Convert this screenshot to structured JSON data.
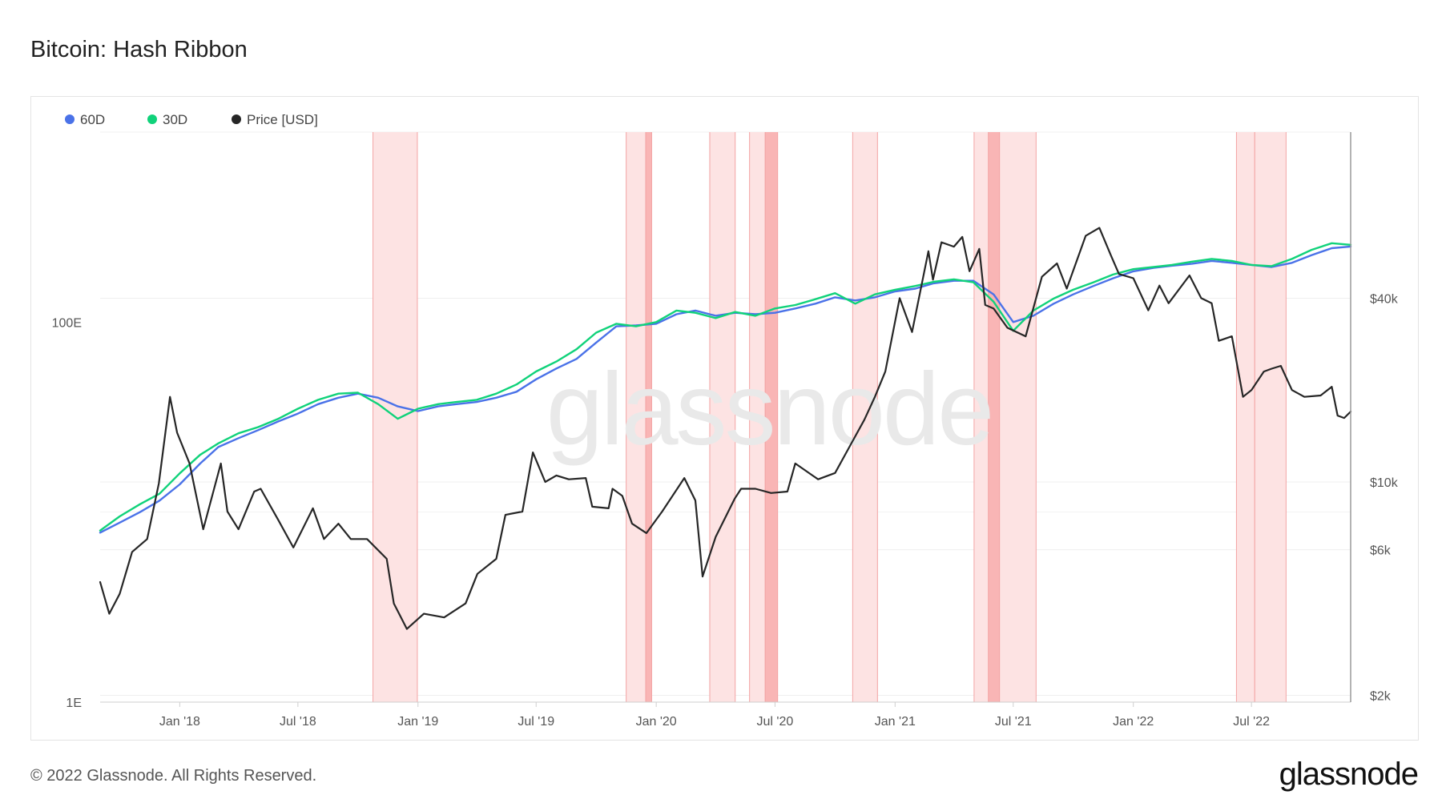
{
  "header": {
    "title": "Bitcoin: Hash Ribbon"
  },
  "footer": {
    "copyright": "© 2022 Glassnode. All Rights Reserved.",
    "logo": "glassnode"
  },
  "watermark": "glassnode",
  "colors": {
    "hr60": "#4a72e8",
    "hr30": "#10d27a",
    "price": "#262626",
    "capitulation_light": "#fde3e3",
    "capitulation_dark": "#f9b5b5",
    "watermark": "#e9e9e9"
  },
  "chart_data": {
    "type": "line",
    "legend": [
      {
        "label": "60D",
        "color": "#4a72e8"
      },
      {
        "label": "30D",
        "color": "#10d27a"
      },
      {
        "label": "Price [USD]",
        "color": "#262626"
      }
    ],
    "legend_position": "top-left",
    "x_ticks": [
      {
        "label": "Jan '18",
        "date": "2018-01-01"
      },
      {
        "label": "Jul '18",
        "date": "2018-07-01"
      },
      {
        "label": "Jan '19",
        "date": "2019-01-01"
      },
      {
        "label": "Jul '19",
        "date": "2019-07-01"
      },
      {
        "label": "Jan '20",
        "date": "2020-01-01"
      },
      {
        "label": "Jul '20",
        "date": "2020-07-01"
      },
      {
        "label": "Jan '21",
        "date": "2021-01-01"
      },
      {
        "label": "Jul '21",
        "date": "2021-07-01"
      },
      {
        "label": "Jan '22",
        "date": "2022-01-01"
      },
      {
        "label": "Jul '22",
        "date": "2022-07-01"
      }
    ],
    "x_range": [
      "2017-09-01",
      "2022-11-30"
    ],
    "y_left": {
      "scale": "log",
      "range": [
        "1E",
        "1000E"
      ],
      "ticks": [
        {
          "label": "1E",
          "value": 1
        },
        {
          "label": "100E",
          "value": 100
        }
      ]
    },
    "y_right": {
      "scale": "log",
      "range": [
        1900,
        140000
      ],
      "ticks": [
        {
          "label": "$2k",
          "value": 2000
        },
        {
          "label": "$6k",
          "value": 6000
        },
        {
          "label": "$10k",
          "value": 10000
        },
        {
          "label": "$40k",
          "value": 40000
        }
      ]
    },
    "capitulation_periods": [
      {
        "start": "2018-10-24",
        "end": "2018-12-31",
        "intensity": "light"
      },
      {
        "start": "2019-11-16",
        "end": "2019-12-16",
        "intensity": "light"
      },
      {
        "start": "2019-12-16",
        "end": "2019-12-25",
        "intensity": "dark"
      },
      {
        "start": "2020-03-23",
        "end": "2020-05-01",
        "intensity": "light"
      },
      {
        "start": "2020-05-23",
        "end": "2020-06-16",
        "intensity": "light"
      },
      {
        "start": "2020-06-16",
        "end": "2020-07-05",
        "intensity": "dark"
      },
      {
        "start": "2020-10-28",
        "end": "2020-12-05",
        "intensity": "light"
      },
      {
        "start": "2021-05-02",
        "end": "2021-05-24",
        "intensity": "light"
      },
      {
        "start": "2021-05-24",
        "end": "2021-06-10",
        "intensity": "dark"
      },
      {
        "start": "2021-06-10",
        "end": "2021-08-05",
        "intensity": "light"
      },
      {
        "start": "2022-06-08",
        "end": "2022-07-06",
        "intensity": "light"
      },
      {
        "start": "2022-07-06",
        "end": "2022-08-23",
        "intensity": "light"
      }
    ],
    "series": [
      {
        "name": "60D",
        "axis": "left",
        "x": [
          "2017-09-01",
          "2017-10-01",
          "2017-11-01",
          "2017-12-01",
          "2018-01-01",
          "2018-02-01",
          "2018-03-01",
          "2018-04-01",
          "2018-05-01",
          "2018-06-01",
          "2018-07-01",
          "2018-08-01",
          "2018-09-01",
          "2018-10-01",
          "2018-11-01",
          "2018-12-01",
          "2019-01-01",
          "2019-02-01",
          "2019-03-01",
          "2019-04-01",
          "2019-05-01",
          "2019-06-01",
          "2019-07-01",
          "2019-08-01",
          "2019-09-01",
          "2019-10-01",
          "2019-11-01",
          "2019-12-01",
          "2020-01-01",
          "2020-02-01",
          "2020-03-01",
          "2020-04-01",
          "2020-05-01",
          "2020-06-01",
          "2020-07-01",
          "2020-08-01",
          "2020-09-01",
          "2020-10-01",
          "2020-11-01",
          "2020-12-01",
          "2021-01-01",
          "2021-02-01",
          "2021-03-01",
          "2021-04-01",
          "2021-05-01",
          "2021-06-01",
          "2021-07-01",
          "2021-08-01",
          "2021-09-01",
          "2021-10-01",
          "2021-11-01",
          "2021-12-01",
          "2022-01-01",
          "2022-02-01",
          "2022-03-01",
          "2022-04-01",
          "2022-05-01",
          "2022-06-01",
          "2022-07-01",
          "2022-08-01",
          "2022-09-01",
          "2022-10-01",
          "2022-11-01",
          "2022-11-30"
        ],
        "values": [
          7.8,
          8.8,
          10.0,
          11.5,
          14.0,
          18.0,
          22.0,
          24.5,
          27.0,
          30.0,
          33.0,
          37.0,
          40.0,
          42.0,
          40.0,
          36.0,
          34.0,
          36.0,
          37.0,
          38.0,
          40.0,
          43.0,
          50.0,
          57.0,
          64.0,
          78.0,
          95.0,
          96.0,
          98.0,
          110.0,
          115.0,
          108.0,
          112.0,
          110.0,
          112.0,
          118.0,
          125.0,
          135.0,
          130.0,
          135.0,
          145.0,
          150.0,
          160.0,
          165.0,
          165.0,
          140.0,
          100.0,
          108.0,
          125.0,
          140.0,
          155.0,
          170.0,
          185.0,
          193.0,
          198.0,
          203.0,
          210.0,
          205.0,
          200.0,
          195.0,
          205.0,
          225.0,
          245.0,
          250.0
        ]
      },
      {
        "name": "30D",
        "axis": "left",
        "x": [
          "2017-09-01",
          "2017-10-01",
          "2017-11-01",
          "2017-12-01",
          "2018-01-01",
          "2018-02-01",
          "2018-03-01",
          "2018-04-01",
          "2018-05-01",
          "2018-06-01",
          "2018-07-01",
          "2018-08-01",
          "2018-09-01",
          "2018-10-01",
          "2018-11-01",
          "2018-12-01",
          "2019-01-01",
          "2019-02-01",
          "2019-03-01",
          "2019-04-01",
          "2019-05-01",
          "2019-06-01",
          "2019-07-01",
          "2019-08-01",
          "2019-09-01",
          "2019-10-01",
          "2019-11-01",
          "2019-12-01",
          "2020-01-01",
          "2020-02-01",
          "2020-03-01",
          "2020-04-01",
          "2020-05-01",
          "2020-06-01",
          "2020-07-01",
          "2020-08-01",
          "2020-09-01",
          "2020-10-01",
          "2020-11-01",
          "2020-12-01",
          "2021-01-01",
          "2021-02-01",
          "2021-03-01",
          "2021-04-01",
          "2021-05-01",
          "2021-06-01",
          "2021-07-01",
          "2021-08-01",
          "2021-09-01",
          "2021-10-01",
          "2021-11-01",
          "2021-12-01",
          "2022-01-01",
          "2022-02-01",
          "2022-03-01",
          "2022-04-01",
          "2022-05-01",
          "2022-06-01",
          "2022-07-01",
          "2022-08-01",
          "2022-09-01",
          "2022-10-01",
          "2022-11-01",
          "2022-11-30"
        ],
        "values": [
          8.0,
          9.5,
          11.0,
          12.5,
          16.0,
          20.0,
          23.0,
          26.0,
          28.0,
          31.0,
          35.0,
          39.0,
          42.0,
          42.5,
          37.0,
          31.0,
          35.0,
          37.0,
          38.0,
          39.0,
          42.0,
          47.0,
          55.0,
          62.0,
          72.0,
          88.0,
          98.0,
          95.0,
          100.0,
          115.0,
          112.0,
          105.0,
          113.0,
          108.0,
          118.0,
          123.0,
          132.0,
          142.0,
          125.0,
          140.0,
          148.0,
          155.0,
          163.0,
          168.0,
          162.0,
          128.0,
          90.0,
          115.0,
          133.0,
          148.0,
          162.0,
          178.0,
          190.0,
          195.0,
          200.0,
          208.0,
          215.0,
          210.0,
          200.0,
          197.0,
          215.0,
          240.0,
          260.0,
          255.0
        ]
      },
      {
        "name": "Price [USD]",
        "axis": "right",
        "x": [
          "2017-09-01",
          "2017-09-15",
          "2017-10-01",
          "2017-10-20",
          "2017-11-12",
          "2017-11-30",
          "2017-12-17",
          "2017-12-28",
          "2018-01-16",
          "2018-02-06",
          "2018-03-05",
          "2018-03-15",
          "2018-04-01",
          "2018-04-25",
          "2018-05-05",
          "2018-06-01",
          "2018-06-24",
          "2018-07-24",
          "2018-08-10",
          "2018-09-01",
          "2018-09-20",
          "2018-10-15",
          "2018-11-14",
          "2018-11-25",
          "2018-12-15",
          "2019-01-10",
          "2019-02-10",
          "2019-03-15",
          "2019-04-02",
          "2019-05-01",
          "2019-05-15",
          "2019-06-10",
          "2019-06-26",
          "2019-07-15",
          "2019-08-01",
          "2019-08-20",
          "2019-09-15",
          "2019-09-25",
          "2019-10-20",
          "2019-10-26",
          "2019-11-10",
          "2019-11-25",
          "2019-12-17",
          "2020-01-10",
          "2020-02-13",
          "2020-03-01",
          "2020-03-12",
          "2020-04-01",
          "2020-04-30",
          "2020-05-10",
          "2020-06-01",
          "2020-06-25",
          "2020-07-20",
          "2020-08-01",
          "2020-09-05",
          "2020-10-01",
          "2020-10-21",
          "2020-11-15",
          "2020-12-01",
          "2020-12-17",
          "2021-01-08",
          "2021-01-27",
          "2021-02-21",
          "2021-02-28",
          "2021-03-13",
          "2021-04-01",
          "2021-04-14",
          "2021-04-25",
          "2021-05-10",
          "2021-05-19",
          "2021-06-01",
          "2021-06-22",
          "2021-07-20",
          "2021-08-14",
          "2021-09-06",
          "2021-09-21",
          "2021-10-20",
          "2021-11-10",
          "2021-11-28",
          "2021-12-10",
          "2022-01-01",
          "2022-01-24",
          "2022-02-10",
          "2022-02-24",
          "2022-03-28",
          "2022-04-15",
          "2022-05-01",
          "2022-05-12",
          "2022-06-01",
          "2022-06-18",
          "2022-07-01",
          "2022-07-20",
          "2022-08-01",
          "2022-08-15",
          "2022-09-01",
          "2022-09-20",
          "2022-10-15",
          "2022-11-01",
          "2022-11-10",
          "2022-11-20",
          "2022-11-30"
        ],
        "values": [
          4700,
          3700,
          4300,
          5900,
          6500,
          9900,
          19000,
          14500,
          11500,
          7000,
          11500,
          8000,
          7000,
          9300,
          9500,
          7500,
          6100,
          8200,
          6500,
          7300,
          6500,
          6500,
          5600,
          4000,
          3300,
          3700,
          3600,
          4000,
          5000,
          5600,
          7800,
          8000,
          12500,
          10000,
          10500,
          10200,
          10300,
          8300,
          8200,
          9500,
          9000,
          7300,
          6800,
          8000,
          10300,
          8700,
          4900,
          6600,
          8800,
          9500,
          9500,
          9200,
          9300,
          11500,
          10200,
          10700,
          12800,
          16000,
          19000,
          23000,
          40000,
          31000,
          57000,
          46000,
          61000,
          59000,
          63500,
          49000,
          58000,
          38000,
          37000,
          32000,
          30000,
          47000,
          52000,
          43000,
          64000,
          68000,
          55000,
          48000,
          46500,
          36500,
          44000,
          38500,
          47500,
          40000,
          38500,
          29000,
          30000,
          19000,
          20000,
          23000,
          23500,
          24000,
          20000,
          19000,
          19200,
          20500,
          16500,
          16200,
          17000
        ]
      }
    ]
  }
}
